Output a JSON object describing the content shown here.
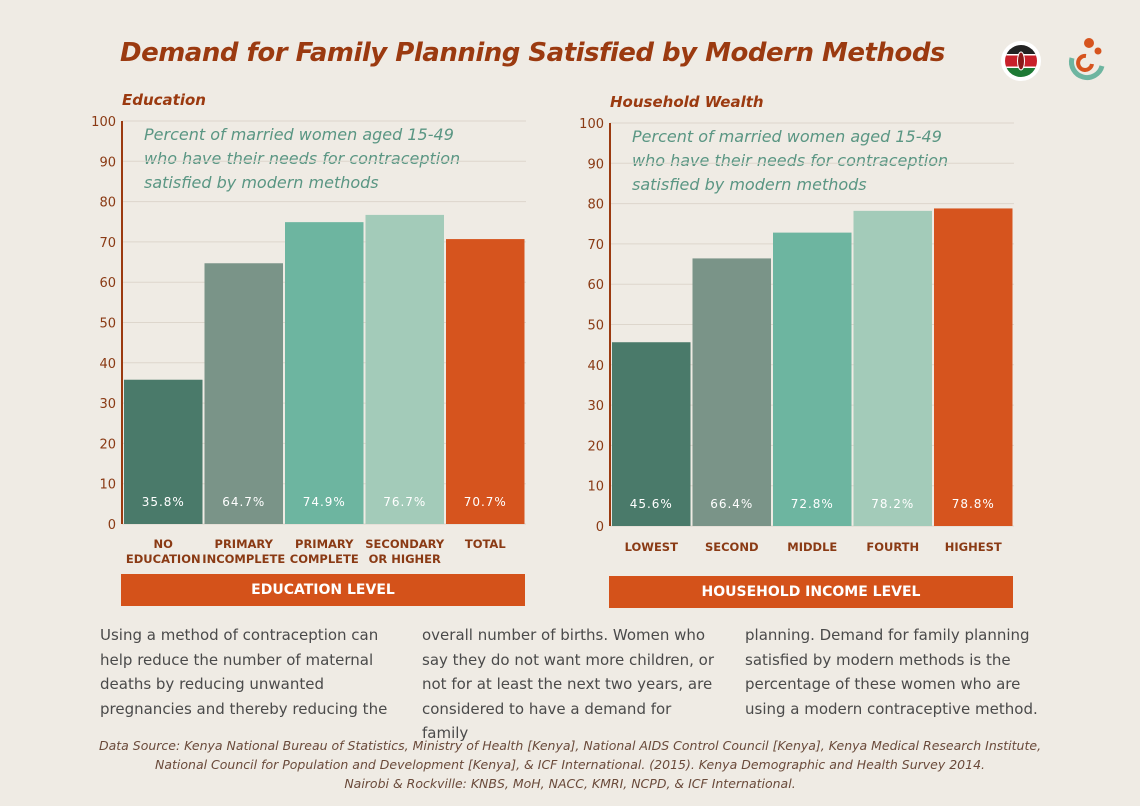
{
  "title": "Demand for Family Planning Satisfied by Modern Methods",
  "logos": [
    "kenya-flag-icon",
    "program-logo-icon"
  ],
  "colors": {
    "title": "#9b3a10",
    "accent": "#d4521a",
    "note": "#5a9683",
    "bars": [
      "#4a7a6a",
      "#7a9488",
      "#6db5a0",
      "#a3cbb9",
      "#d6541e"
    ]
  },
  "chart_data": [
    {
      "type": "bar",
      "subtitle": "Education",
      "note": [
        "Percent of married women aged 15-49",
        "who have their needs for contraception",
        "satisfied by modern methods"
      ],
      "categories": [
        [
          "NO",
          "EDUCATION"
        ],
        [
          "PRIMARY",
          "INCOMPLETE"
        ],
        [
          "PRIMARY",
          "COMPLETE"
        ],
        [
          "SECONDARY",
          "OR HIGHER"
        ],
        [
          "TOTAL"
        ]
      ],
      "values": [
        35.8,
        64.7,
        74.9,
        76.7,
        70.7
      ],
      "labels": [
        "35.8%",
        "64.7%",
        "74.9%",
        "76.7%",
        "70.7%"
      ],
      "xlabel": "EDUCATION LEVEL",
      "ylim": [
        0,
        100
      ],
      "yticks": [
        "0",
        "10",
        "20",
        "30",
        "40",
        "50",
        "60",
        "70",
        "80",
        "90",
        "100"
      ],
      "grid": true
    },
    {
      "type": "bar",
      "subtitle": "Household Wealth",
      "note": [
        "Percent of married women aged 15-49",
        "who have their needs for contraception",
        "satisfied by modern methods"
      ],
      "categories": [
        [
          "LOWEST"
        ],
        [
          "SECOND"
        ],
        [
          "MIDDLE"
        ],
        [
          "FOURTH"
        ],
        [
          "HIGHEST"
        ]
      ],
      "values": [
        45.6,
        66.4,
        72.8,
        78.2,
        78.8
      ],
      "labels": [
        "45.6%",
        "66.4%",
        "72.8%",
        "78.2%",
        "78.8%"
      ],
      "xlabel": "HOUSEHOLD INCOME LEVEL",
      "ylim": [
        0,
        100
      ],
      "yticks": [
        "0",
        "10",
        "20",
        "30",
        "40",
        "50",
        "60",
        "70",
        "80",
        "90",
        "100"
      ],
      "grid": true
    }
  ],
  "body": [
    "Using a method of contraception can help reduce the number of maternal deaths by reducing unwanted pregnancies and thereby reducing the",
    "overall number of births. Women who say they do not want more children, or not for at least the next two years, are considered to have a demand for family",
    "planning. Demand for family planning satisfied by modern methods is the percentage of these women who are using a modern contraceptive method."
  ],
  "source": [
    "Data Source:  Kenya National Bureau of Statistics, Ministry of Health [Kenya], National AIDS Control Council [Kenya], Kenya Medical Research Institute,",
    "National Council for Population and Development [Kenya], & ICF International. (2015). Kenya Demographic and Health Survey 2014.",
    "Nairobi & Rockville: KNBS, MoH, NACC, KMRI, NCPD, & ICF International."
  ]
}
